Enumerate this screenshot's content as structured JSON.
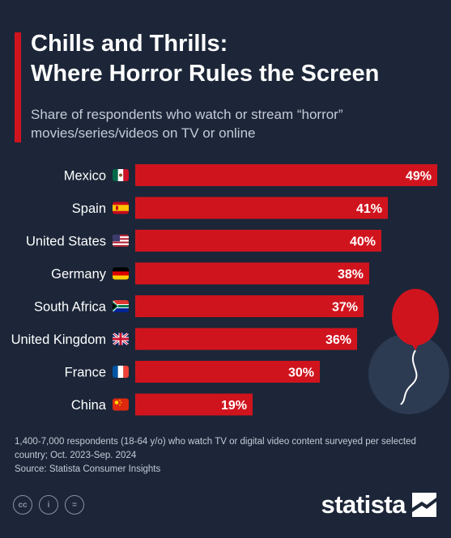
{
  "header": {
    "title_lines": [
      "Chills and Thrills:",
      "Where Horror Rules the Screen"
    ],
    "subtitle_lines": [
      "Share of respondents who watch or stream “horror”",
      "movies/series/videos on TV or online"
    ]
  },
  "chart_data": {
    "type": "bar",
    "orientation": "horizontal",
    "categories": [
      "Mexico",
      "Spain",
      "United States",
      "Germany",
      "South Africa",
      "United Kingdom",
      "France",
      "China"
    ],
    "values": [
      49,
      41,
      40,
      38,
      37,
      36,
      30,
      19
    ],
    "value_labels": [
      "49%",
      "41%",
      "40%",
      "38%",
      "37%",
      "36%",
      "30%",
      "19%"
    ],
    "flags": [
      "mexico-flag",
      "spain-flag",
      "usa-flag",
      "germany-flag",
      "south-africa-flag",
      "uk-flag",
      "france-flag",
      "china-flag"
    ],
    "unit": "%",
    "xlim": [
      0,
      49
    ],
    "bar_color": "#d0141e",
    "grid": false,
    "legend": "none"
  },
  "footnote": {
    "lines": [
      "1,400-7,000 respondents (18-64 y/o) who watch TV or digital video content surveyed per selected",
      "country; Oct. 2023-Sep. 2024"
    ],
    "source": "Source: Statista Consumer Insights"
  },
  "license_icons": [
    "cc-icon",
    "by-icon",
    "nd-icon"
  ],
  "license_icon_text": [
    "cc",
    "i",
    "="
  ],
  "brand": {
    "name": "statista"
  },
  "colors": {
    "background": "#1c2638",
    "accent": "#d0141e",
    "text": "#ffffff",
    "muted": "#c4cad6"
  }
}
